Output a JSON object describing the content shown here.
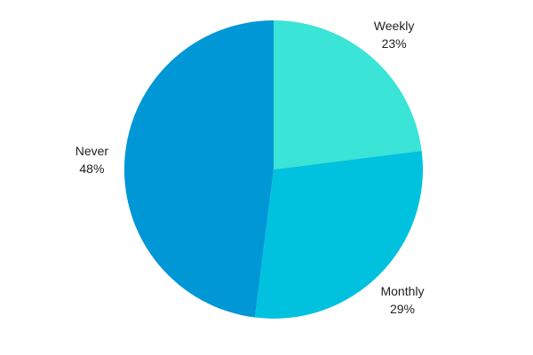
{
  "chart_data": {
    "type": "pie",
    "title": "",
    "slices": [
      {
        "label": "Weekly",
        "percent_label": "23%",
        "value": 23,
        "color": "#3ae4d6"
      },
      {
        "label": "Monthly",
        "percent_label": "29%",
        "value": 29,
        "color": "#00c1de"
      },
      {
        "label": "Never",
        "percent_label": "48%",
        "value": 48,
        "color": "#0097d6"
      }
    ],
    "start_angle_deg": 0,
    "direction": "clockwise",
    "legend": "none"
  }
}
